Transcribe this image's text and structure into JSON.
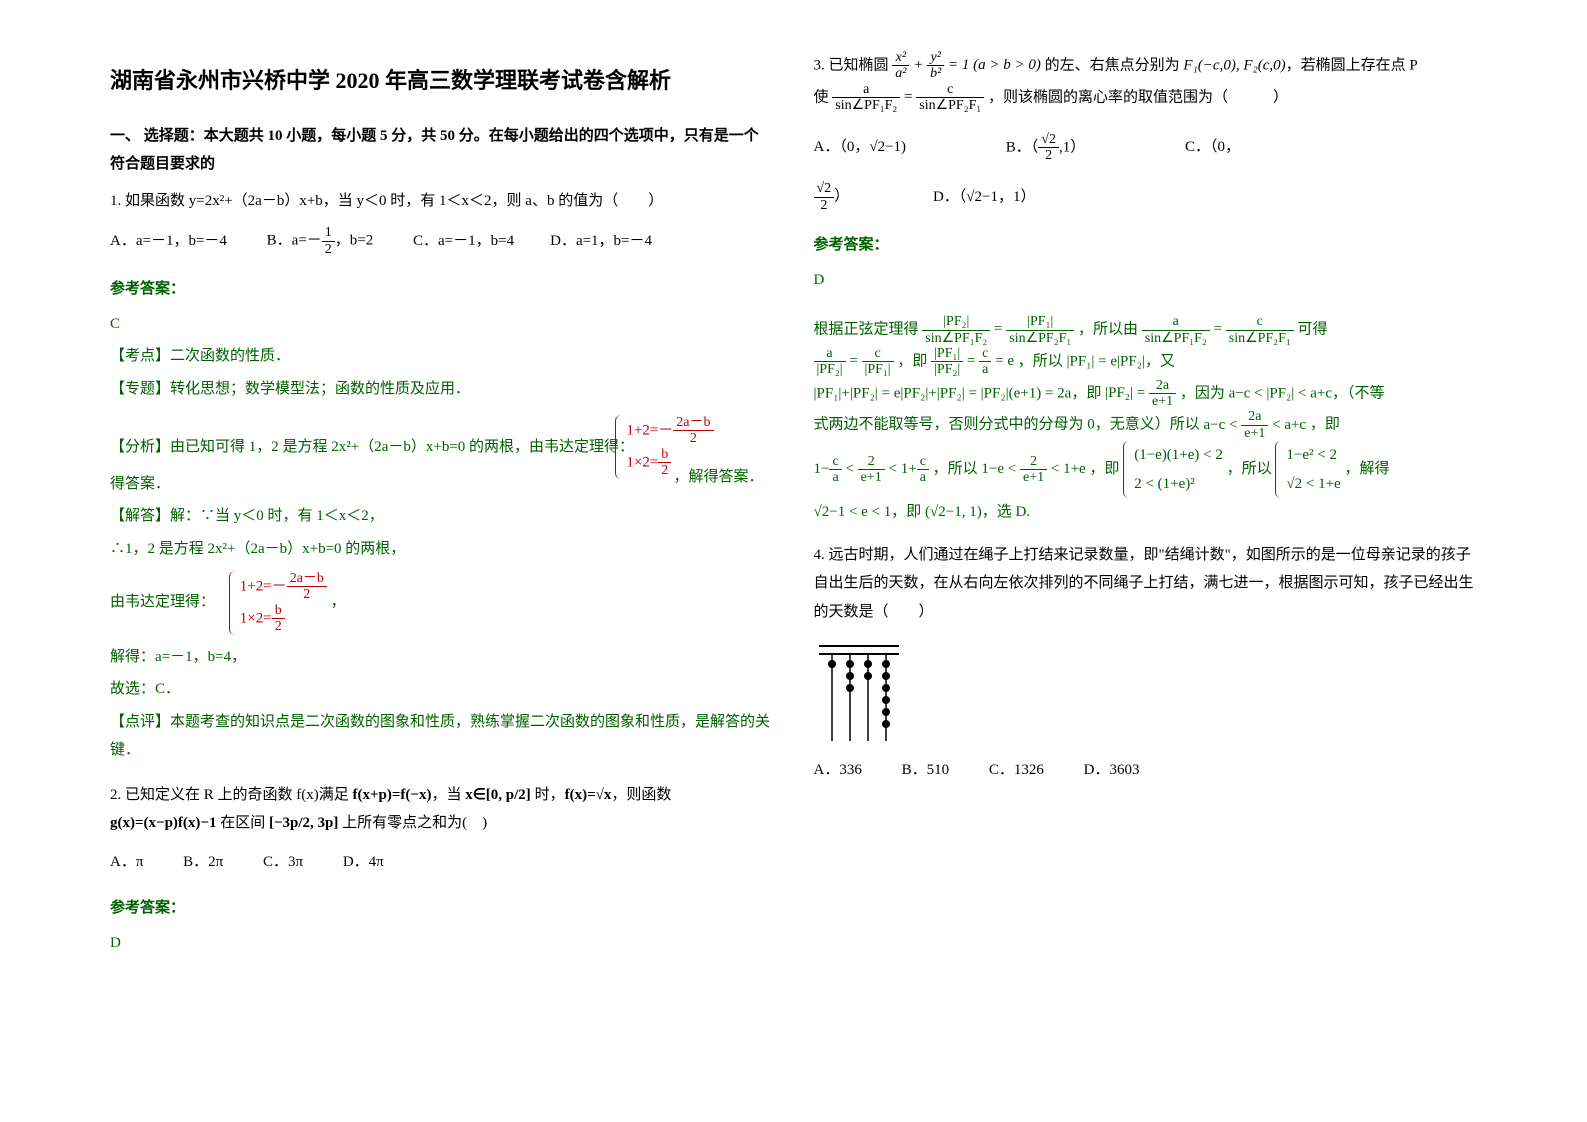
{
  "title": "湖南省永州市兴桥中学 2020 年高三数学理联考试卷含解析",
  "section1_header": "一、 选择题：本大题共 10 小题，每小题 5 分，共 50 分。在每小题给出的四个选项中，只有是一个符合题目要求的",
  "q1": {
    "stem": "1. 如果函数 y=2x²+（2a－b）x+b，当 y＜0 时，有 1＜x＜2，则 a、b 的值为（　　）",
    "optA": "A．a=－1，b=－4",
    "optB_prefix": "B．a=－",
    "optB_suffix": "，b=2",
    "optC": "C．a=－1，b=4",
    "optD": "D．a=1，b=－4",
    "answer_label": "参考答案：",
    "answer": "C",
    "kd": "【考点】二次函数的性质．",
    "zt": "【专题】转化思想；数学模型法；函数的性质及应用．",
    "fx_prefix": "【分析】由已知可得 1，2 是方程 2x²+（2a－b）x+b=0 的两根，由韦达定理得：",
    "fx_suffix": "，解得答案．",
    "eq1a": "1+2=－",
    "eq1a_num": "2a－b",
    "eq1a_den": "2",
    "eq1b": "1×2=",
    "eq1b_num": "b",
    "eq1b_den": "2",
    "jd1": "【解答】解：∵当 y＜0 时，有 1＜x＜2，",
    "jd2": "∴1，2 是方程 2x²+（2a－b）x+b=0 的两根，",
    "jd3": "由韦达定理得：",
    "jd4": "解得：a=－1，b=4，",
    "jd5": "故选：C．",
    "dp": "【点评】本题考查的知识点是二次函数的图象和性质，熟练掌握二次函数的图象和性质，是解答的关键．"
  },
  "q2": {
    "stem_a": "2. 已知定义在 R 上的奇函数 f(x)满足 ",
    "fx_eq": "f(x+p)=f(−x)",
    "stem_b": "，当 ",
    "xrange": "x∈[0, p/2]",
    "stem_c": " 时，",
    "fx_sqrt": "f(x)=√x",
    "stem_d": "，则函数",
    "gx": "g(x)=(x−p)f(x)−1",
    "stem_e": " 在区间 ",
    "interval": "[−3p/2, 3p]",
    "stem_f": " 上所有零点之和为(　)",
    "optA": "A．π",
    "optB": "B．2π",
    "optC": "C．3π",
    "optD": "D．4π",
    "answer_label": "参考答案：",
    "answer": "D"
  },
  "q3": {
    "stem_a": "3. 已知椭圆 ",
    "eq_ellipse": "x²/a² + y²/b² = 1 (a>b>0)",
    "stem_b": " 的左、右焦点分别为 ",
    "foci": "F₁(−c,0), F₂(c,0)",
    "stem_c": "，若椭圆上存在点 P",
    "stem_d": "使 ",
    "eq_sine": "a / sin∠PF₁F₂ = c / sin∠PF₂F₁",
    "stem_e": "，则该椭圆的离心率的取值范围为（　　　）",
    "optA_prefix": "A．（0，",
    "optA_val": "√2−1)",
    "optB_prefix": "B．（",
    "optB_val": "√2/2 ,1",
    "optB_suffix": "）",
    "optC": "C．（0，",
    "optC2": "√2/2",
    "optC3": "）",
    "optD_prefix": "D．（",
    "optD_val": "√2−1，1）",
    "answer_label": "参考答案：",
    "answer": "D",
    "sol1": "根据正弦定理得 ",
    "sol1_eq": "|PF₂| / sin∠PF₁F₂ = |PF₁| / sin∠PF₂F₁",
    "sol1_b": "，所以由 ",
    "sol1_eq2": "a / sin∠PF₁F₂ = c / sin∠PF₂F₁",
    "sol1_c": " 可得",
    "sol2_eq": "a/|PF₂| = c/|PF₁|",
    "sol2_b": "，即 ",
    "sol2_eq2": "|PF₁|/|PF₂| = c/a = e",
    "sol2_c": "，所以 ",
    "sol2_eq3": "|PF₁| = e|PF₂|",
    "sol2_d": "，又",
    "sol3_eq": "|PF₁|+|PF₂| = e|PF₂|+|PF₂| = |PF₂|(e+1) = 2a",
    "sol3_b": "，即 ",
    "sol3_eq2": "|PF₂| = 2a/(e+1)",
    "sol3_c": "，因为 ",
    "sol3_eq3": "a−c < |PF₂| < a+c",
    "sol3_d": "，（不等",
    "sol4": "式两边不能取等号，否则分式中的分母为 0，无意义）所以 ",
    "sol4_eq": "a−c < 2a/(e+1) < a+c",
    "sol4_b": "，即",
    "sol5_eq": "1−c/a < 2/(e+1) < 1+c/a",
    "sol5_b": "，所以 ",
    "sol5_eq2": "1−e < 2/(e+1) < 1+e",
    "sol5_c": "，即 ",
    "sol5_brace1": "(1−e)(1+e) < 2",
    "sol5_brace2": "2 < (1+e)²",
    "sol5_d": "，所以 ",
    "sol5_brace3": "1−e² < 2",
    "sol5_brace4": "√2 < 1+e",
    "sol5_e": "，解得",
    "sol6_eq": "√2−1 < e < 1",
    "sol6_b": "，即 ",
    "sol6_eq2": "(√2−1, 1)",
    "sol6_c": "，选 D."
  },
  "q4": {
    "stem": "4. 远古时期，人们通过在绳子上打结来记录数量，即\"结绳计数\"，如图所示的是一位母亲记录的孩子自出生后的天数，在从右向左依次排列的不同绳子上打结，满七进一，根据图示可知，孩子已经出生的天数是（　　）",
    "optA": "A．336",
    "optB": "B．510",
    "optC": "C．1326",
    "optD": "D．3603",
    "knots": [
      1,
      3,
      2,
      6
    ]
  },
  "colors": {
    "text": "#000000",
    "answer_green": "#006000",
    "math_red": "#c00000",
    "background": "#ffffff"
  }
}
